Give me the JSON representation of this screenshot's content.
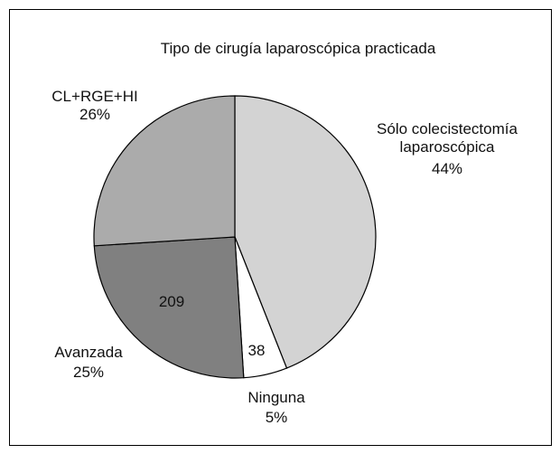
{
  "chart_data": {
    "type": "pie",
    "title": "Tipo de cirugía laparoscópica practicada",
    "categories": [
      "Sólo colecistectomía laparoscópica",
      "Ninguna",
      "Avanzada",
      "CL+RGE+HI"
    ],
    "values": [
      44,
      5,
      25,
      26
    ],
    "counts": [
      null,
      38,
      209,
      null
    ],
    "colors": [
      "#d3d3d3",
      "#ffffff",
      "#808080",
      "#ababab"
    ]
  }
}
